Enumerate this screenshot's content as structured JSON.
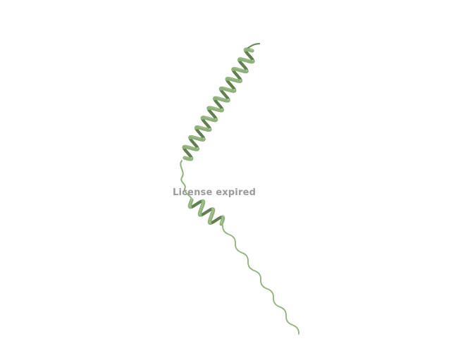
{
  "viewer": {
    "watermark_text": "License expired"
  },
  "scene": {
    "molecule_kind": "protein-helix-cartoon",
    "background_color": "#ffffff",
    "ribbon_color": "#8fb27a",
    "ribbon_shadow_color": "#5f7f4e",
    "ribbon_highlight_color": "#b9d3a6",
    "watermark_color": "#9a9a9a"
  }
}
